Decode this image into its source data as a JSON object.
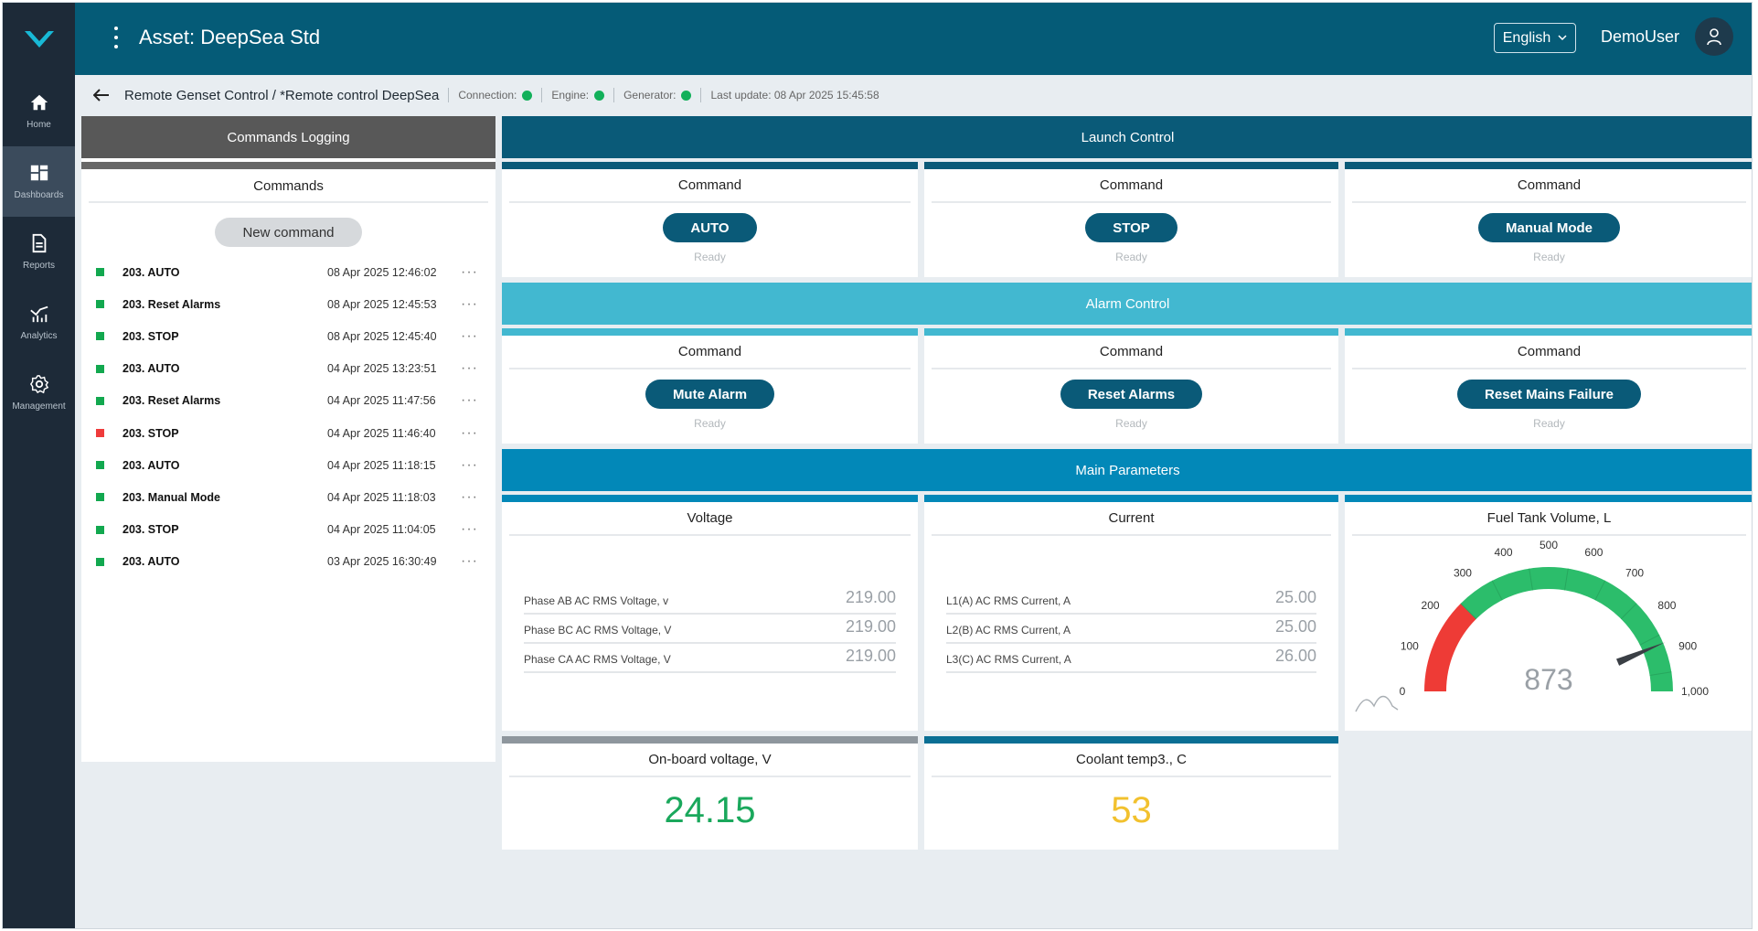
{
  "app": {
    "asset_title": "Asset: DeepSea Std",
    "language": "English",
    "user": "DemoUser"
  },
  "sidebar": {
    "items": [
      {
        "label": "Home",
        "icon": "home-icon"
      },
      {
        "label": "Dashboards",
        "icon": "dashboard-icon",
        "active": true
      },
      {
        "label": "Reports",
        "icon": "report-icon"
      },
      {
        "label": "Analytics",
        "icon": "analytics-icon"
      },
      {
        "label": "Management",
        "icon": "gear-icon"
      }
    ]
  },
  "breadcrumb": {
    "path": "Remote Genset Control / *Remote control DeepSea",
    "connection": "Connection:",
    "engine": "Engine:",
    "generator": "Generator:",
    "last_update": "Last update: 08 Apr 2025 15:45:58",
    "status_color": "#12b05a"
  },
  "log": {
    "header": "Commands Logging",
    "title": "Commands",
    "new_command": "New command",
    "rows": [
      {
        "name": "203. AUTO",
        "time": "08 Apr 2025 12:46:02",
        "status": "ok"
      },
      {
        "name": "203. Reset Alarms",
        "time": "08 Apr 2025 12:45:53",
        "status": "ok"
      },
      {
        "name": "203. STOP",
        "time": "08 Apr 2025 12:45:40",
        "status": "ok"
      },
      {
        "name": "203. AUTO",
        "time": "04 Apr 2025 13:23:51",
        "status": "ok"
      },
      {
        "name": "203. Reset Alarms",
        "time": "04 Apr 2025 11:47:56",
        "status": "ok"
      },
      {
        "name": "203. STOP",
        "time": "04 Apr 2025 11:46:40",
        "status": "error"
      },
      {
        "name": "203. AUTO",
        "time": "04 Apr 2025 11:18:15",
        "status": "ok"
      },
      {
        "name": "203. Manual Mode",
        "time": "04 Apr 2025 11:18:03",
        "status": "ok"
      },
      {
        "name": "203. STOP",
        "time": "04 Apr 2025 11:04:05",
        "status": "ok"
      },
      {
        "name": "203. AUTO",
        "time": "03 Apr 2025 16:30:49",
        "status": "ok"
      }
    ],
    "more": "···"
  },
  "launch": {
    "header": "Launch Control",
    "cards": [
      {
        "title": "Command",
        "button": "AUTO",
        "status": "Ready"
      },
      {
        "title": "Command",
        "button": "STOP",
        "status": "Ready"
      },
      {
        "title": "Command",
        "button": "Manual Mode",
        "status": "Ready"
      }
    ]
  },
  "alarm": {
    "header": "Alarm Control",
    "cards": [
      {
        "title": "Command",
        "button": "Mute Alarm",
        "status": "Ready"
      },
      {
        "title": "Command",
        "button": "Reset Alarms",
        "status": "Ready"
      },
      {
        "title": "Command",
        "button": "Reset Mains Failure",
        "status": "Ready"
      }
    ]
  },
  "params": {
    "header": "Main Parameters",
    "voltage": {
      "title": "Voltage",
      "rows": [
        {
          "label": "Phase AB AC RMS Voltage, v",
          "value": "219.00"
        },
        {
          "label": "Phase BC AC RMS Voltage, V",
          "value": "219.00"
        },
        {
          "label": "Phase CA AC RMS Voltage, V",
          "value": "219.00"
        }
      ]
    },
    "current": {
      "title": "Current",
      "rows": [
        {
          "label": "L1(A) AC RMS Current, A",
          "value": "25.00"
        },
        {
          "label": "L2(B) AC RMS Current, A",
          "value": "25.00"
        },
        {
          "label": "L3(C) AC RMS Current, A",
          "value": "26.00"
        }
      ]
    },
    "fuel": {
      "title": "Fuel Tank Volume, L",
      "value": "873",
      "gauge_value": 873,
      "min": 0,
      "max": 1000,
      "red_until": 250,
      "ticks": [
        "0",
        "100",
        "200",
        "300",
        "400",
        "500",
        "600",
        "700",
        "800",
        "900",
        "1,000"
      ]
    },
    "onboard": {
      "title": "On-board voltage, V",
      "value": "24.15",
      "color": "#1aa85c"
    },
    "coolant": {
      "title": "Coolant temp3., C",
      "value": "53",
      "color": "#f2c12e"
    }
  }
}
